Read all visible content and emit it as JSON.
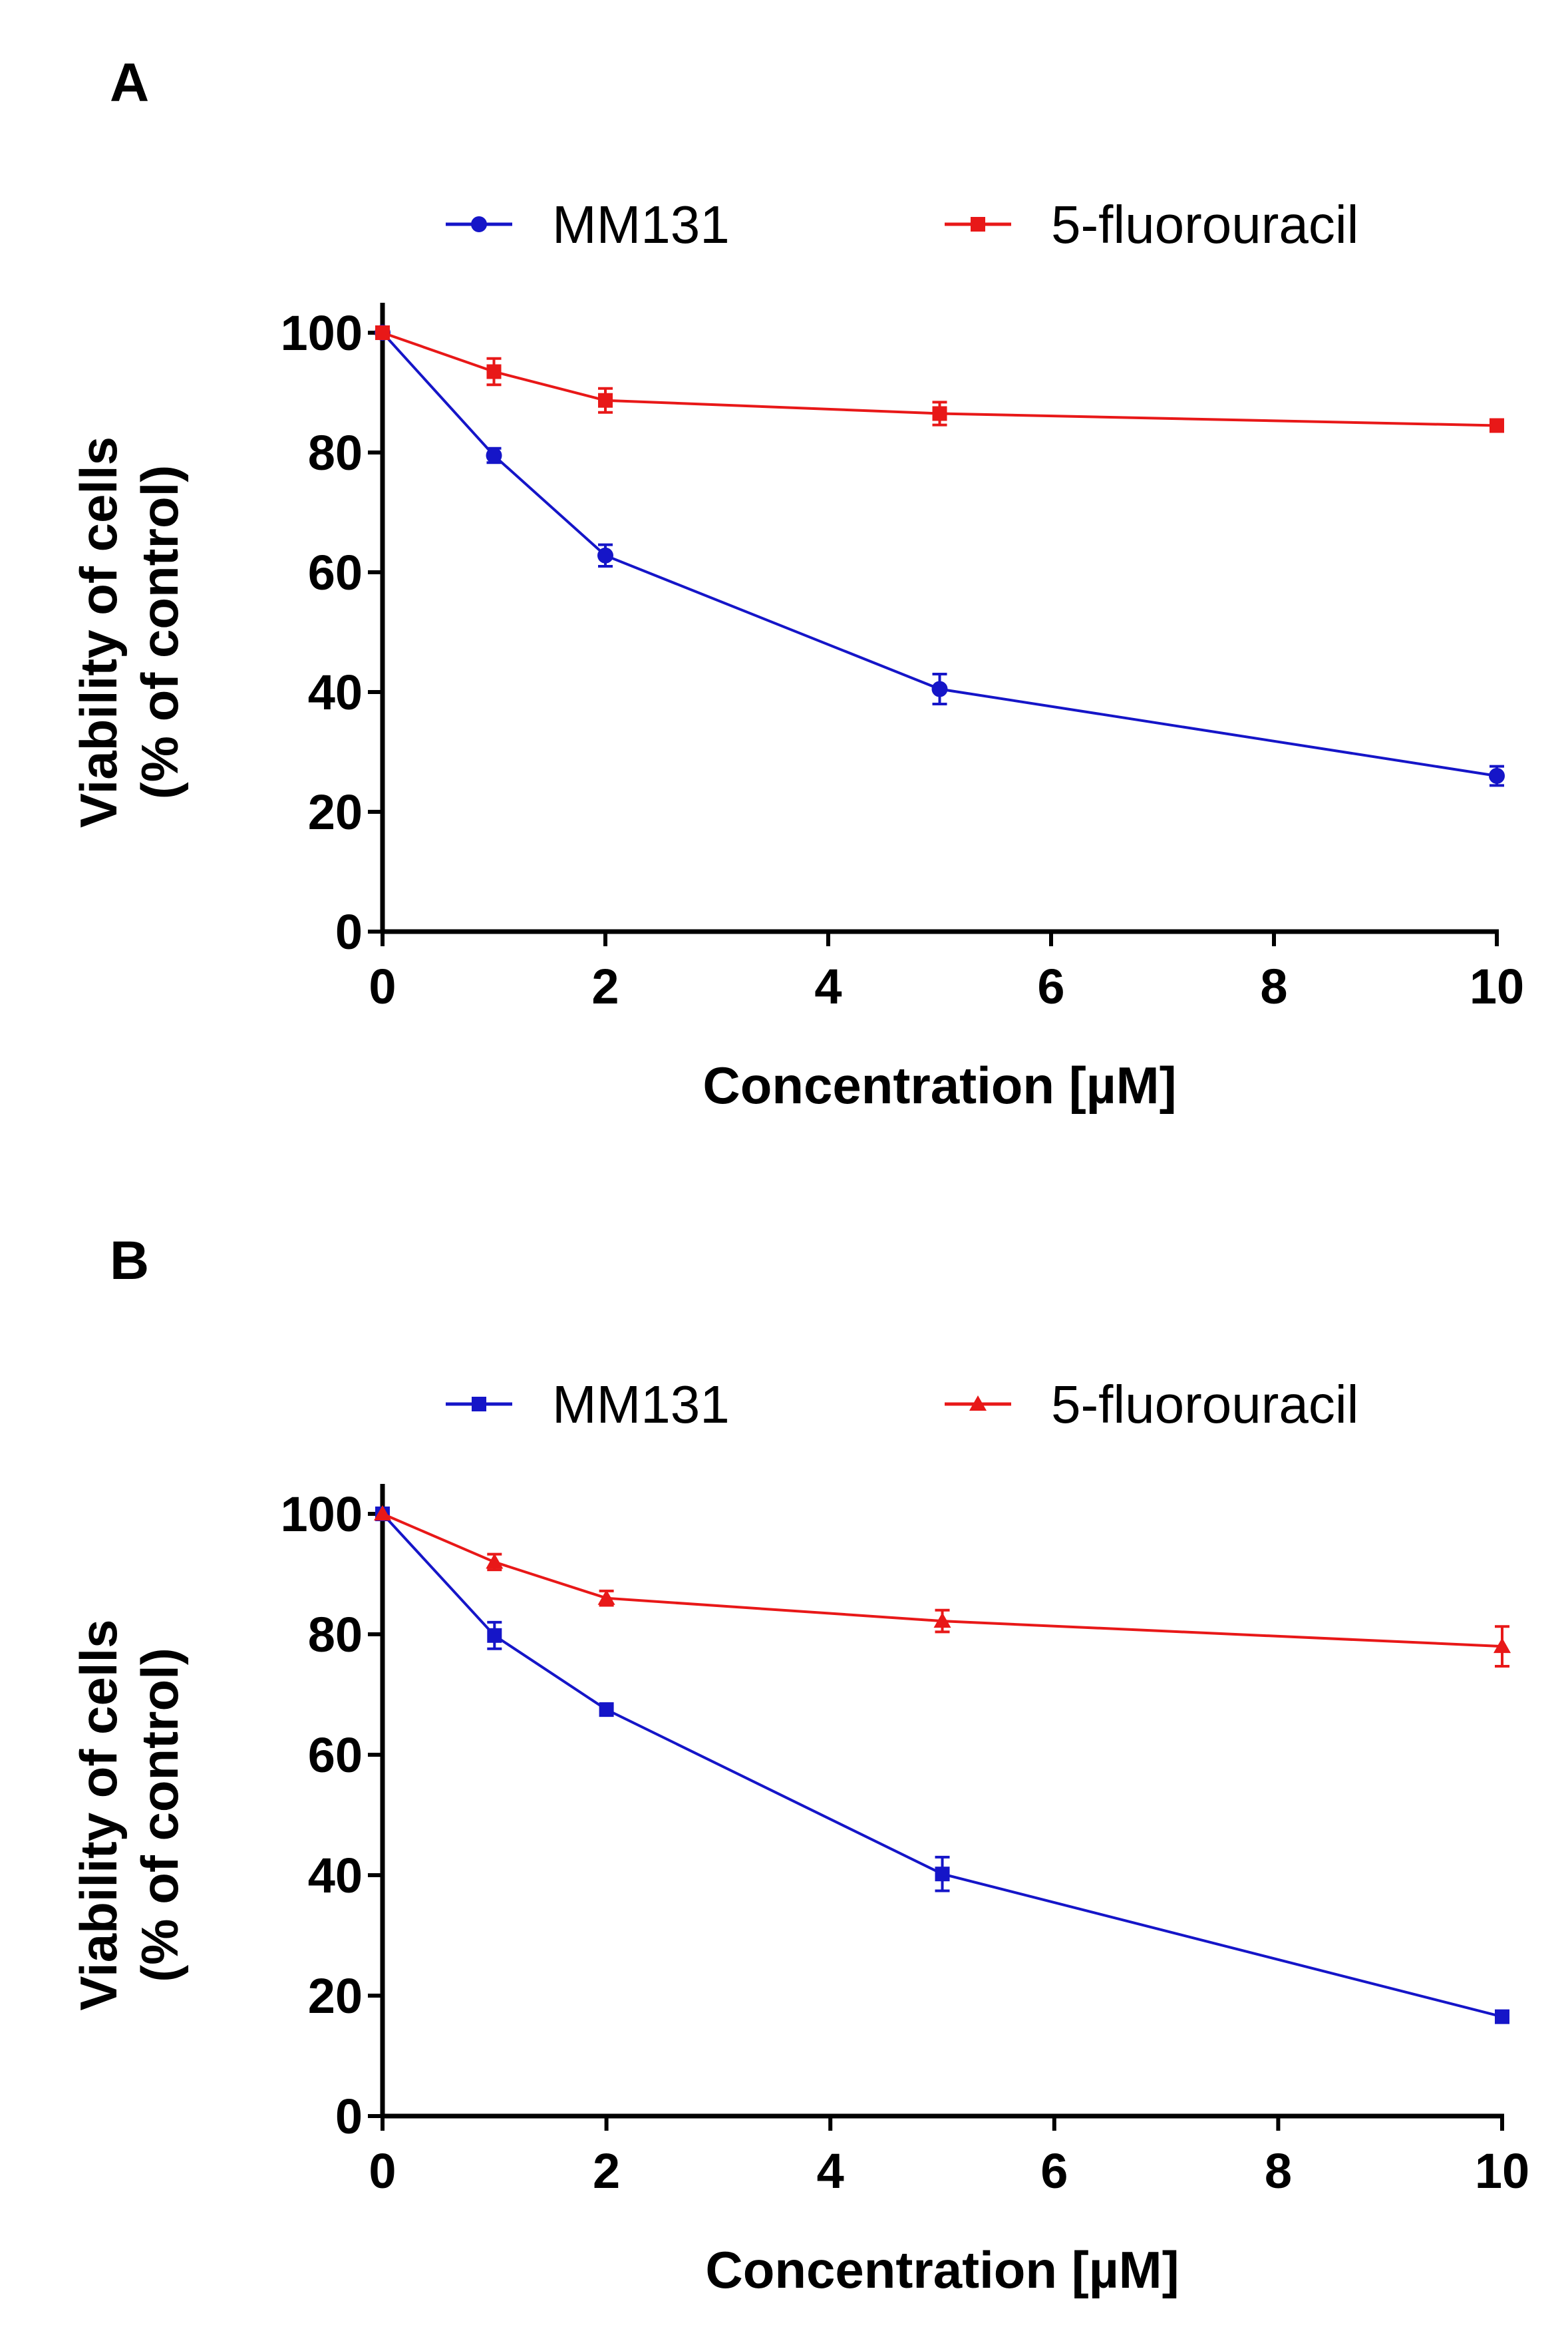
{
  "chart_data": [
    {
      "type": "line",
      "panel_label": "A",
      "xlabel": "Concentration [µM]",
      "ylabel": [
        "Viability of cells",
        "(% of control)"
      ],
      "xlim": [
        0,
        10
      ],
      "ylim": [
        0,
        100
      ],
      "xticks": [
        0,
        2,
        4,
        6,
        8,
        10
      ],
      "yticks": [
        0,
        20,
        40,
        60,
        80,
        100
      ],
      "grid": false,
      "legend_position": "top",
      "x": [
        0,
        1,
        2,
        5,
        10
      ],
      "series": [
        {
          "name": "MM131",
          "color": "#1515c8",
          "marker": "circle",
          "values": [
            100,
            79.5,
            62.8,
            40.5,
            26
          ],
          "errors": [
            0.5,
            1.2,
            1.8,
            2.5,
            1.6
          ]
        },
        {
          "name": "5-fluorouracil",
          "color": "#e81818",
          "marker": "square",
          "values": [
            100,
            93.5,
            88.7,
            86.5,
            84.5
          ],
          "errors": [
            0.5,
            2.2,
            2.0,
            1.9,
            0.8
          ]
        }
      ]
    },
    {
      "type": "line",
      "panel_label": "B",
      "xlabel": "Concentration [µM]",
      "ylabel": [
        "Viability of cells",
        "(% of control)"
      ],
      "xlim": [
        0,
        10
      ],
      "ylim": [
        0,
        100
      ],
      "xticks": [
        0,
        2,
        4,
        6,
        8,
        10
      ],
      "yticks": [
        0,
        20,
        40,
        60,
        80,
        100
      ],
      "grid": false,
      "legend_position": "top",
      "x": [
        0,
        1,
        2,
        5,
        10
      ],
      "series": [
        {
          "name": "MM131",
          "color": "#1515c8",
          "marker": "square",
          "values": [
            100,
            79.8,
            67.5,
            40.2,
            16.5
          ],
          "errors": [
            0.5,
            2.2,
            0.6,
            2.8,
            0.8
          ]
        },
        {
          "name": "5-fluorouracil",
          "color": "#e81818",
          "marker": "triangle",
          "values": [
            100,
            92,
            86,
            82.2,
            78
          ],
          "errors": [
            0.5,
            1.3,
            1.2,
            1.8,
            3.3
          ]
        }
      ]
    }
  ]
}
